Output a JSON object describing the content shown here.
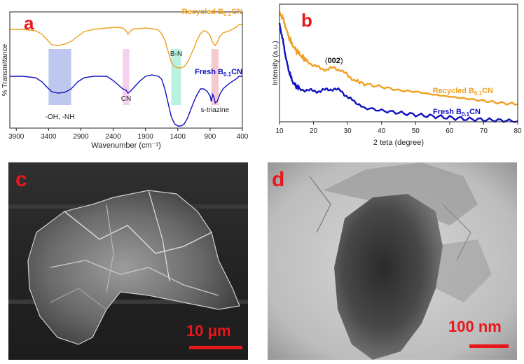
{
  "panels": {
    "a": {
      "letter": "a",
      "chart_data": {
        "type": "line",
        "xlabel": "Wavenumber (cm⁻¹)",
        "ylabel": "% Transmittance",
        "xlim": [
          4000,
          400
        ],
        "x_reversed": true,
        "x_ticks": [
          "3900",
          "3400",
          "2900",
          "2400",
          "1900",
          "1400",
          "900",
          "400"
        ],
        "series": [
          {
            "name_main": "Recycled B",
            "name_sub": "0.1",
            "name_tail": "CN",
            "color": "#f0a020",
            "points": [
              [
                4000,
                25
              ],
              [
                3800,
                25
              ],
              [
                3600,
                27
              ],
              [
                3500,
                32
              ],
              [
                3420,
                40
              ],
              [
                3350,
                47
              ],
              [
                3250,
                48
              ],
              [
                3150,
                46
              ],
              [
                3050,
                42
              ],
              [
                2950,
                35
              ],
              [
                2850,
                28
              ],
              [
                2700,
                25
              ],
              [
                2500,
                23
              ],
              [
                2350,
                22
              ],
              [
                2250,
                23
              ],
              [
                2200,
                27
              ],
              [
                2170,
                32
              ],
              [
                2140,
                28
              ],
              [
                2080,
                24
              ],
              [
                2000,
                24
              ],
              [
                1900,
                23
              ],
              [
                1800,
                24
              ],
              [
                1700,
                26
              ],
              [
                1650,
                31
              ],
              [
                1600,
                40
              ],
              [
                1550,
                56
              ],
              [
                1500,
                72
              ],
              [
                1450,
                78
              ],
              [
                1400,
                80
              ],
              [
                1350,
                80
              ],
              [
                1300,
                78
              ],
              [
                1250,
                72
              ],
              [
                1200,
                62
              ],
              [
                1150,
                52
              ],
              [
                1100,
                40
              ],
              [
                1050,
                31
              ],
              [
                1000,
                27
              ],
              [
                950,
                28
              ],
              [
                900,
                34
              ],
              [
                860,
                44
              ],
              [
                820,
                48
              ],
              [
                790,
                44
              ],
              [
                750,
                35
              ],
              [
                700,
                30
              ],
              [
                600,
                27
              ],
              [
                500,
                22
              ],
              [
                450,
                18
              ],
              [
                400,
                18
              ]
            ]
          },
          {
            "name_main": "Fresh B",
            "name_sub": "0.1",
            "name_tail": "CN",
            "color": "#1010c0",
            "points": [
              [
                4000,
                92
              ],
              [
                3800,
                92
              ],
              [
                3600,
                94
              ],
              [
                3500,
                100
              ],
              [
                3420,
                108
              ],
              [
                3350,
                114
              ],
              [
                3250,
                116
              ],
              [
                3150,
                115
              ],
              [
                3050,
                110
              ],
              [
                2950,
                100
              ],
              [
                2850,
                94
              ],
              [
                2700,
                92
              ],
              [
                2500,
                92
              ],
              [
                2400,
                98
              ],
              [
                2300,
                106
              ],
              [
                2250,
                110
              ],
              [
                2200,
                112
              ],
              [
                2170,
                116
              ],
              [
                2140,
                114
              ],
              [
                2080,
                108
              ],
              [
                2000,
                100
              ],
              [
                1900,
                92
              ],
              [
                1800,
                90
              ],
              [
                1700,
                92
              ],
              [
                1650,
                96
              ],
              [
                1600,
                110
              ],
              [
                1550,
                130
              ],
              [
                1500,
                150
              ],
              [
                1450,
                160
              ],
              [
                1400,
                163
              ],
              [
                1350,
                163
              ],
              [
                1300,
                160
              ],
              [
                1250,
                152
              ],
              [
                1200,
                140
              ],
              [
                1150,
                128
              ],
              [
                1100,
                118
              ],
              [
                1050,
                110
              ],
              [
                1000,
                110
              ],
              [
                950,
                113
              ],
              [
                900,
                120
              ],
              [
                880,
                128
              ],
              [
                860,
                118
              ],
              [
                840,
                122
              ],
              [
                820,
                130
              ],
              [
                790,
                128
              ],
              [
                750,
                118
              ],
              [
                700,
                110
              ],
              [
                600,
                102
              ],
              [
                500,
                96
              ],
              [
                450,
                92
              ],
              [
                400,
                92
              ]
            ]
          }
        ],
        "bands": [
          {
            "x_from": 3400,
            "x_to": 3050,
            "color": "#a8b4e8",
            "label": "-OH, -NH"
          },
          {
            "x_from": 2250,
            "x_to": 2150,
            "color": "#f4c0ea",
            "label": "CN"
          },
          {
            "x_from": 1500,
            "x_to": 1350,
            "color": "#a0ecd8",
            "label": "B-N"
          },
          {
            "x_from": 880,
            "x_to": 770,
            "color": "#f0b8bc",
            "label": "s-triazine"
          }
        ]
      }
    },
    "b": {
      "letter": "b",
      "chart_data": {
        "type": "line",
        "xlabel": "2 teta (degree)",
        "ylabel": "Intensity (a.u.)",
        "xlim": [
          10,
          80
        ],
        "x_ticks": [
          "10",
          "20",
          "30",
          "40",
          "50",
          "60",
          "70",
          "80"
        ],
        "annotation_open": "(",
        "annotation": "002",
        "annotation_close": ")",
        "annotation_x": 26,
        "series": [
          {
            "name_main": "Recycled B",
            "name_sub": "0.1",
            "name_tail": "CN",
            "color": "#f0a020",
            "points": [
              [
                10,
                12
              ],
              [
                11,
                20
              ],
              [
                12,
                36
              ],
              [
                13,
                50
              ],
              [
                14,
                60
              ],
              [
                15,
                67
              ],
              [
                16,
                72
              ],
              [
                17,
                77
              ],
              [
                18,
                81
              ],
              [
                20,
                87
              ],
              [
                22,
                92
              ],
              [
                24,
                93
              ],
              [
                26,
                91
              ],
              [
                28,
                94
              ],
              [
                30,
                102
              ],
              [
                32,
                108
              ],
              [
                35,
                114
              ],
              [
                40,
                118
              ],
              [
                45,
                123
              ],
              [
                50,
                125
              ],
              [
                55,
                129
              ],
              [
                60,
                132
              ],
              [
                65,
                135
              ],
              [
                70,
                138
              ],
              [
                75,
                141
              ],
              [
                80,
                143
              ]
            ]
          },
          {
            "name_main": "Fresh B",
            "name_sub": "0.1",
            "name_tail": "CN",
            "color": "#1010c0",
            "points": [
              [
                10,
                28
              ],
              [
                11,
                52
              ],
              [
                12,
                80
              ],
              [
                13,
                100
              ],
              [
                14,
                112
              ],
              [
                15,
                118
              ],
              [
                16,
                121
              ],
              [
                18,
                123
              ],
              [
                20,
                124
              ],
              [
                22,
                124
              ],
              [
                24,
                122
              ],
              [
                26,
                121
              ],
              [
                28,
                124
              ],
              [
                30,
                132
              ],
              [
                32,
                140
              ],
              [
                35,
                148
              ],
              [
                40,
                152
              ],
              [
                45,
                155
              ],
              [
                50,
                158
              ],
              [
                55,
                160
              ],
              [
                60,
                162
              ],
              [
                65,
                164
              ],
              [
                70,
                165
              ],
              [
                75,
                166
              ],
              [
                80,
                167
              ]
            ]
          }
        ]
      }
    },
    "c": {
      "letter": "c",
      "scale": "10 μm"
    },
    "d": {
      "letter": "d",
      "scale": "100 nm"
    }
  }
}
